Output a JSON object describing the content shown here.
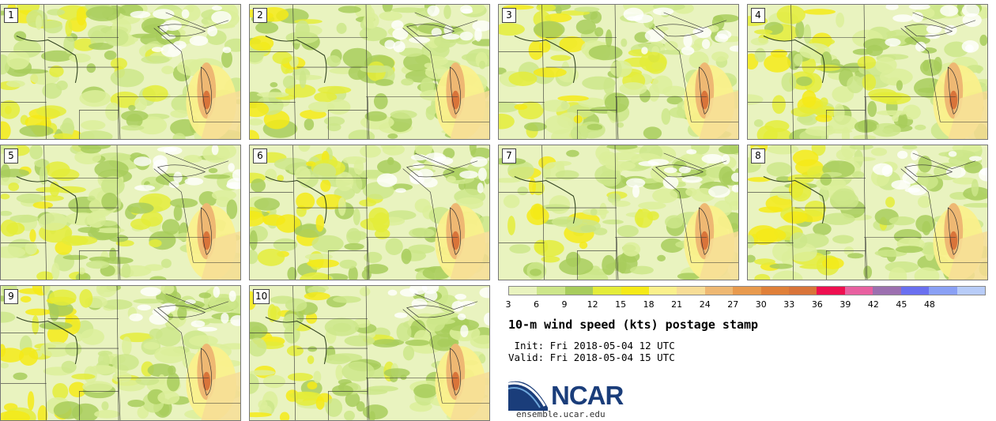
{
  "panels": [
    {
      "label": "1"
    },
    {
      "label": "2"
    },
    {
      "label": "3"
    },
    {
      "label": "4"
    },
    {
      "label": "5"
    },
    {
      "label": "6"
    },
    {
      "label": "7"
    },
    {
      "label": "8"
    },
    {
      "label": "9"
    },
    {
      "label": "10"
    }
  ],
  "colorbar": {
    "ticks": [
      "3",
      "6",
      "9",
      "12",
      "15",
      "18",
      "21",
      "24",
      "27",
      "30",
      "33",
      "36",
      "39",
      "42",
      "45",
      "48"
    ],
    "colors": [
      "#e9f3bf",
      "#cde68a",
      "#a8cc5c",
      "#e4ec3a",
      "#f5ea18",
      "#faf08c",
      "#f7dd96",
      "#eeb873",
      "#e89a4e",
      "#e0803a",
      "#d9743a",
      "#ee1050",
      "#e860a0",
      "#9c70b0",
      "#6a70f0",
      "#8aa0f5",
      "#b8ccf8"
    ]
  },
  "title": "10-m wind speed (kts) postage stamp",
  "init_line": " Init: Fri 2018-05-04 12 UTC",
  "valid_line": "Valid: Fri 2018-05-04 15 UTC",
  "logo": {
    "text": "NCAR",
    "color": "#1a3d7a"
  },
  "site": "ensemble.ucar.edu"
}
